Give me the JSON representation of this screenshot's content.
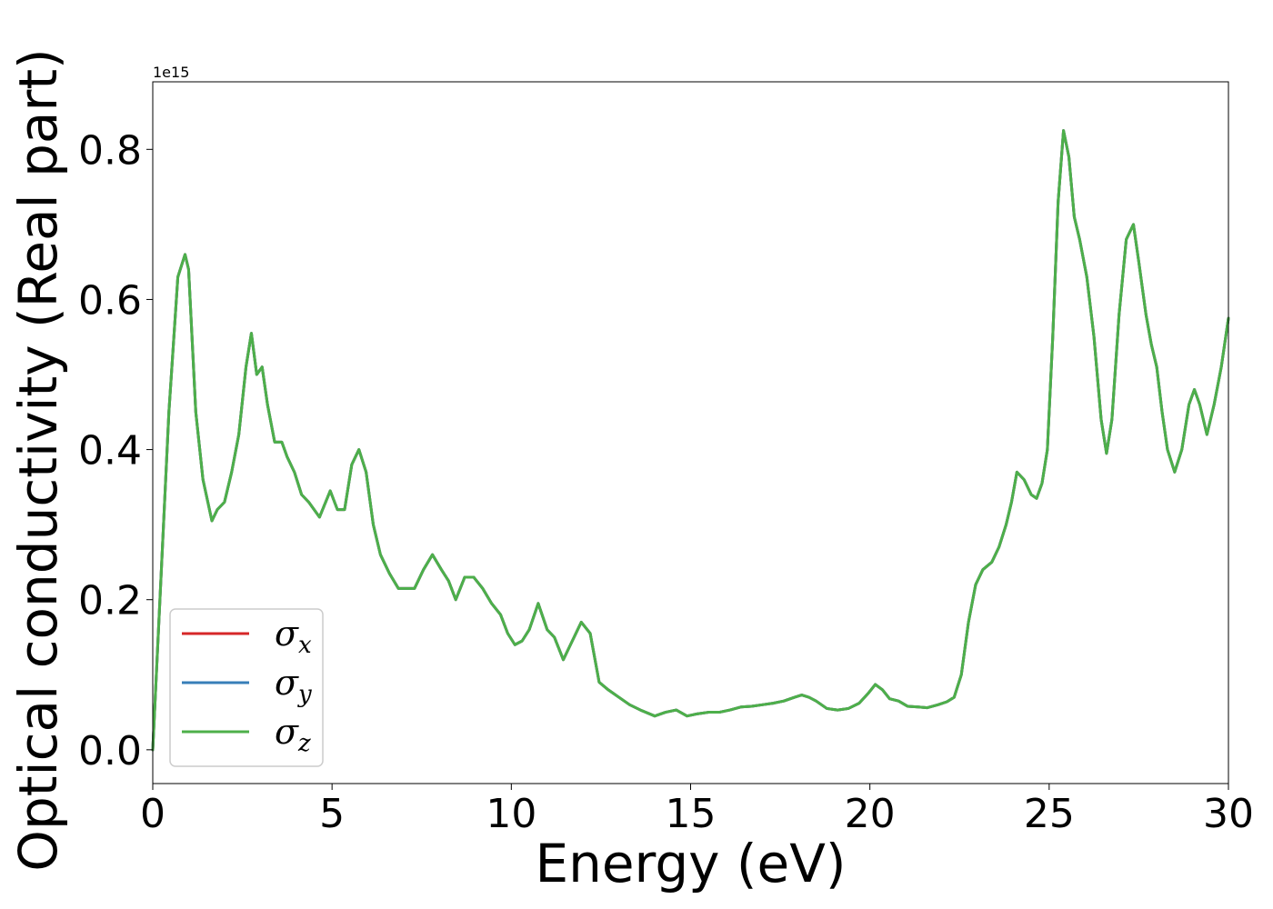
{
  "chart_data": {
    "type": "line",
    "title": "",
    "xlabel": "Energy (eV)",
    "ylabel": "Optical conductivity (Real part)",
    "y_offset_text": "1e15",
    "y_scale": 1000000000000000.0,
    "xlim": [
      0,
      30
    ],
    "ylim": [
      -0.045,
      0.89
    ],
    "grid": false,
    "legend_position": "lower-left",
    "x_ticks": [
      0,
      5,
      10,
      15,
      20,
      25,
      30
    ],
    "x_tick_labels": [
      "0",
      "5",
      "10",
      "15",
      "20",
      "25",
      "30"
    ],
    "y_ticks": [
      0.0,
      0.2,
      0.4,
      0.6,
      0.8
    ],
    "y_tick_labels": [
      "0.0",
      "0.2",
      "0.4",
      "0.6",
      "0.8"
    ],
    "x": [
      0.0,
      0.2,
      0.45,
      0.7,
      0.9,
      1.0,
      1.2,
      1.4,
      1.65,
      1.8,
      2.0,
      2.2,
      2.4,
      2.6,
      2.75,
      2.9,
      3.05,
      3.2,
      3.4,
      3.6,
      3.75,
      3.95,
      4.15,
      4.35,
      4.65,
      4.95,
      5.15,
      5.35,
      5.55,
      5.75,
      5.95,
      6.15,
      6.35,
      6.6,
      6.85,
      7.05,
      7.3,
      7.55,
      7.8,
      8.05,
      8.25,
      8.45,
      8.7,
      8.95,
      9.2,
      9.45,
      9.7,
      9.9,
      10.1,
      10.3,
      10.5,
      10.75,
      11.0,
      11.2,
      11.45,
      11.7,
      11.95,
      12.2,
      12.45,
      12.7,
      13.0,
      13.3,
      13.6,
      14.0,
      14.3,
      14.6,
      14.9,
      15.2,
      15.5,
      15.8,
      16.1,
      16.4,
      16.7,
      17.0,
      17.3,
      17.6,
      17.9,
      18.1,
      18.3,
      18.5,
      18.8,
      19.1,
      19.4,
      19.7,
      19.95,
      20.15,
      20.35,
      20.55,
      20.8,
      21.05,
      21.35,
      21.6,
      21.9,
      22.15,
      22.35,
      22.55,
      22.75,
      22.95,
      23.15,
      23.4,
      23.6,
      23.8,
      23.95,
      24.1,
      24.3,
      24.5,
      24.65,
      24.8,
      24.95,
      25.1,
      25.25,
      25.4,
      25.55,
      25.7,
      25.85,
      26.05,
      26.25,
      26.45,
      26.6,
      26.75,
      26.95,
      27.15,
      27.35,
      27.5,
      27.7,
      27.85,
      28.0,
      28.15,
      28.3,
      28.5,
      28.7,
      28.9,
      29.05,
      29.2,
      29.4,
      29.6,
      29.8,
      30.0
    ],
    "series": [
      {
        "name": "σx",
        "color": "#d62728",
        "values": [
          0.0,
          0.2,
          0.45,
          0.63,
          0.66,
          0.64,
          0.45,
          0.36,
          0.305,
          0.32,
          0.33,
          0.37,
          0.42,
          0.51,
          0.555,
          0.5,
          0.51,
          0.46,
          0.41,
          0.41,
          0.39,
          0.37,
          0.34,
          0.33,
          0.31,
          0.345,
          0.32,
          0.32,
          0.38,
          0.4,
          0.37,
          0.3,
          0.26,
          0.235,
          0.215,
          0.215,
          0.215,
          0.24,
          0.26,
          0.24,
          0.225,
          0.2,
          0.23,
          0.23,
          0.215,
          0.195,
          0.18,
          0.155,
          0.14,
          0.145,
          0.16,
          0.195,
          0.16,
          0.15,
          0.12,
          0.145,
          0.17,
          0.155,
          0.09,
          0.08,
          0.07,
          0.06,
          0.053,
          0.045,
          0.05,
          0.053,
          0.045,
          0.048,
          0.05,
          0.05,
          0.053,
          0.057,
          0.058,
          0.06,
          0.062,
          0.065,
          0.07,
          0.073,
          0.07,
          0.065,
          0.055,
          0.053,
          0.055,
          0.062,
          0.075,
          0.087,
          0.08,
          0.068,
          0.065,
          0.058,
          0.057,
          0.056,
          0.06,
          0.064,
          0.07,
          0.1,
          0.17,
          0.22,
          0.24,
          0.25,
          0.27,
          0.3,
          0.33,
          0.37,
          0.36,
          0.34,
          0.335,
          0.355,
          0.4,
          0.55,
          0.73,
          0.825,
          0.79,
          0.71,
          0.68,
          0.63,
          0.55,
          0.44,
          0.395,
          0.44,
          0.58,
          0.68,
          0.7,
          0.65,
          0.58,
          0.54,
          0.51,
          0.45,
          0.4,
          0.37,
          0.4,
          0.46,
          0.48,
          0.46,
          0.42,
          0.46,
          0.51,
          0.575
        ]
      },
      {
        "name": "σy",
        "color": "#377eb8",
        "values": [
          0.0,
          0.2,
          0.45,
          0.63,
          0.66,
          0.64,
          0.45,
          0.36,
          0.305,
          0.32,
          0.33,
          0.37,
          0.42,
          0.51,
          0.555,
          0.5,
          0.51,
          0.46,
          0.41,
          0.41,
          0.39,
          0.37,
          0.34,
          0.33,
          0.31,
          0.345,
          0.32,
          0.32,
          0.38,
          0.4,
          0.37,
          0.3,
          0.26,
          0.235,
          0.215,
          0.215,
          0.215,
          0.24,
          0.26,
          0.24,
          0.225,
          0.2,
          0.23,
          0.23,
          0.215,
          0.195,
          0.18,
          0.155,
          0.14,
          0.145,
          0.16,
          0.195,
          0.16,
          0.15,
          0.12,
          0.145,
          0.17,
          0.155,
          0.09,
          0.08,
          0.07,
          0.06,
          0.053,
          0.045,
          0.05,
          0.053,
          0.045,
          0.048,
          0.05,
          0.05,
          0.053,
          0.057,
          0.058,
          0.06,
          0.062,
          0.065,
          0.07,
          0.073,
          0.07,
          0.065,
          0.055,
          0.053,
          0.055,
          0.062,
          0.075,
          0.087,
          0.08,
          0.068,
          0.065,
          0.058,
          0.057,
          0.056,
          0.06,
          0.064,
          0.07,
          0.1,
          0.17,
          0.22,
          0.24,
          0.25,
          0.27,
          0.3,
          0.33,
          0.37,
          0.36,
          0.34,
          0.335,
          0.355,
          0.4,
          0.55,
          0.73,
          0.825,
          0.79,
          0.71,
          0.68,
          0.63,
          0.55,
          0.44,
          0.395,
          0.44,
          0.58,
          0.68,
          0.7,
          0.65,
          0.58,
          0.54,
          0.51,
          0.45,
          0.4,
          0.37,
          0.4,
          0.46,
          0.48,
          0.46,
          0.42,
          0.46,
          0.51,
          0.575
        ]
      },
      {
        "name": "σz",
        "color": "#4daf4a",
        "values": [
          0.0,
          0.2,
          0.45,
          0.63,
          0.66,
          0.64,
          0.45,
          0.36,
          0.305,
          0.32,
          0.33,
          0.37,
          0.42,
          0.51,
          0.555,
          0.5,
          0.51,
          0.46,
          0.41,
          0.41,
          0.39,
          0.37,
          0.34,
          0.33,
          0.31,
          0.345,
          0.32,
          0.32,
          0.38,
          0.4,
          0.37,
          0.3,
          0.26,
          0.235,
          0.215,
          0.215,
          0.215,
          0.24,
          0.26,
          0.24,
          0.225,
          0.2,
          0.23,
          0.23,
          0.215,
          0.195,
          0.18,
          0.155,
          0.14,
          0.145,
          0.16,
          0.195,
          0.16,
          0.15,
          0.12,
          0.145,
          0.17,
          0.155,
          0.09,
          0.08,
          0.07,
          0.06,
          0.053,
          0.045,
          0.05,
          0.053,
          0.045,
          0.048,
          0.05,
          0.05,
          0.053,
          0.057,
          0.058,
          0.06,
          0.062,
          0.065,
          0.07,
          0.073,
          0.07,
          0.065,
          0.055,
          0.053,
          0.055,
          0.062,
          0.075,
          0.087,
          0.08,
          0.068,
          0.065,
          0.058,
          0.057,
          0.056,
          0.06,
          0.064,
          0.07,
          0.1,
          0.17,
          0.22,
          0.24,
          0.25,
          0.27,
          0.3,
          0.33,
          0.37,
          0.36,
          0.34,
          0.335,
          0.355,
          0.4,
          0.55,
          0.73,
          0.825,
          0.79,
          0.71,
          0.68,
          0.63,
          0.55,
          0.44,
          0.395,
          0.44,
          0.58,
          0.68,
          0.7,
          0.65,
          0.58,
          0.54,
          0.51,
          0.45,
          0.4,
          0.37,
          0.4,
          0.46,
          0.48,
          0.46,
          0.42,
          0.46,
          0.51,
          0.575
        ]
      }
    ],
    "legend": [
      {
        "symbol": "σ",
        "sub": "x",
        "color": "#d62728"
      },
      {
        "symbol": "σ",
        "sub": "y",
        "color": "#377eb8"
      },
      {
        "symbol": "σ",
        "sub": "z",
        "color": "#4daf4a"
      }
    ]
  }
}
